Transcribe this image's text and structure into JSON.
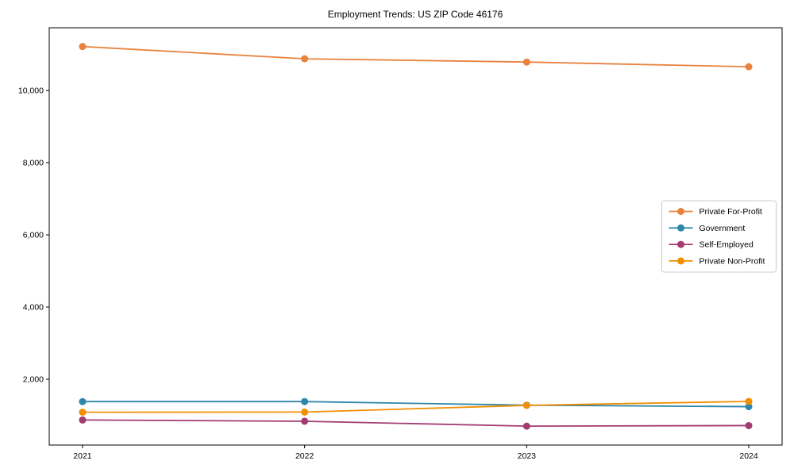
{
  "chart_data": {
    "type": "line",
    "title": "Employment Trends: US ZIP Code 46176",
    "x": [
      2021,
      2022,
      2023,
      2024
    ],
    "xtick_labels": [
      "2021",
      "2022",
      "2023",
      "2024"
    ],
    "xlim": [
      2020.85,
      2024.15
    ],
    "ylim": [
      175,
      11740
    ],
    "yticks": [
      2000,
      4000,
      6000,
      8000,
      10000
    ],
    "ytick_labels": [
      "2,000",
      "4,000",
      "6,000",
      "8,000",
      "10,000"
    ],
    "grid": false,
    "legend_position": "center right",
    "series": [
      {
        "name": "Private For-Profit",
        "color": "#e8823e",
        "values": [
          11220,
          10880,
          10790,
          10660
        ]
      },
      {
        "name": "Government",
        "color": "#2e86ab",
        "values": [
          1380,
          1380,
          1280,
          1240
        ]
      },
      {
        "name": "Self-Employed",
        "color": "#a23b72",
        "values": [
          870,
          835,
          700,
          715
        ]
      },
      {
        "name": "Private Non-Profit",
        "color": "#f18f01",
        "values": [
          1085,
          1090,
          1275,
          1385
        ]
      }
    ],
    "colors": {
      "spine": "#000000",
      "legend_border": "#cccccc",
      "legend_bg": "#ffffff"
    }
  }
}
